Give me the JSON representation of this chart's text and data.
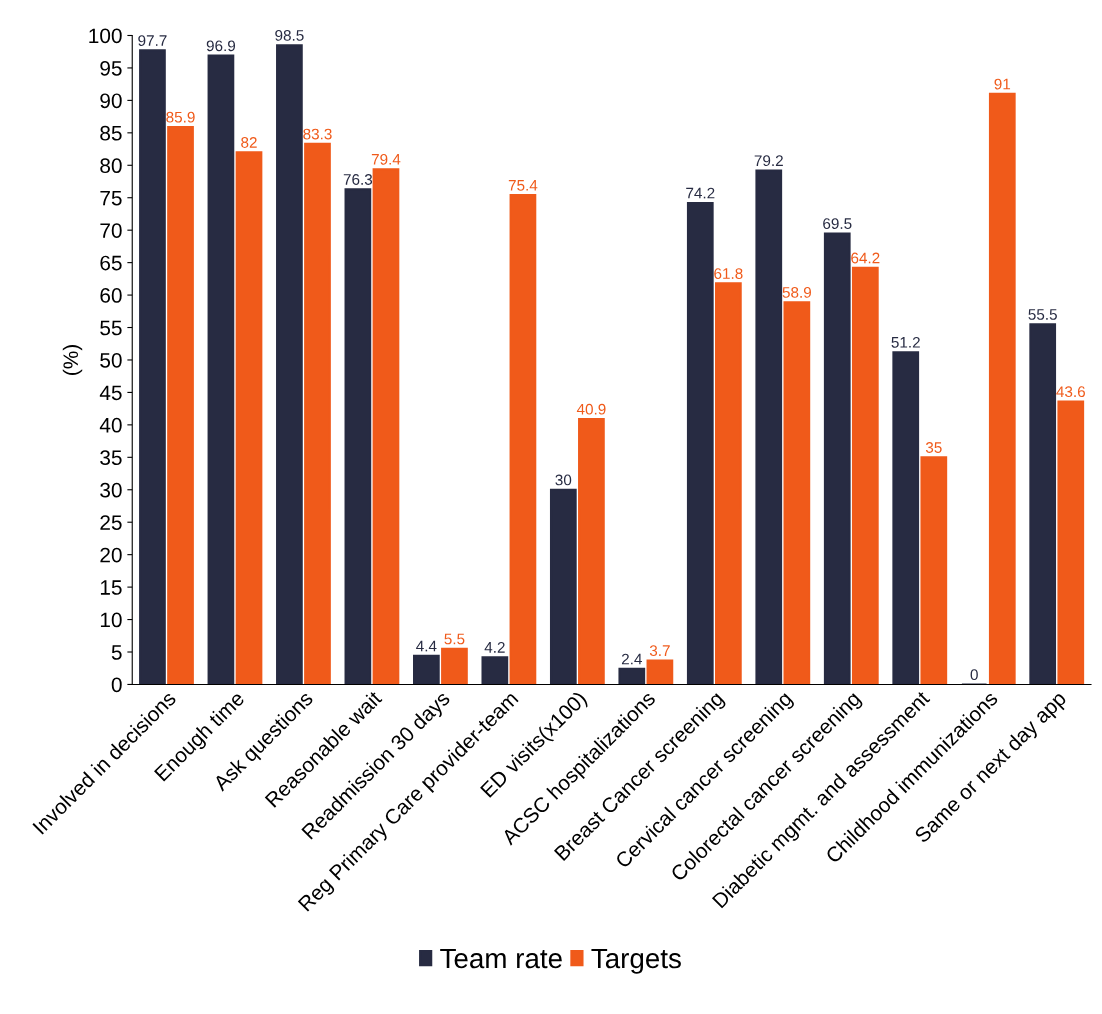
{
  "chart_data": {
    "type": "bar",
    "ylabel": "(%)",
    "categories": [
      "Involved in decisions",
      "Enough time",
      "Ask questions",
      "Reasonable wait",
      "Readmission 30 days",
      "Reg Primary Care provider-team",
      "ED visits(x100)",
      "ACSC hospitalizations",
      "Breast Cancer screening",
      "Cervical cancer screening",
      "Colorectal cancer screening",
      "Diabetic mgmt. and assessment",
      "Childhood immunizations",
      "Same or next day app"
    ],
    "series": [
      {
        "name": "Team rate",
        "color": "#272b42",
        "values": [
          97.7,
          96.9,
          98.5,
          76.3,
          4.4,
          4.2,
          30,
          2.4,
          74.2,
          79.2,
          69.5,
          51.2,
          0,
          55.5
        ]
      },
      {
        "name": "Targets",
        "color": "#f05a1a",
        "values": [
          85.9,
          82,
          83.3,
          79.4,
          5.5,
          75.4,
          40.9,
          3.7,
          61.8,
          58.9,
          64.2,
          35,
          91,
          43.6
        ]
      }
    ],
    "ylim": [
      0,
      100
    ],
    "yticks": [
      0,
      5,
      10,
      15,
      20,
      25,
      30,
      35,
      40,
      45,
      50,
      55,
      60,
      65,
      70,
      75,
      80,
      85,
      90,
      95,
      100
    ],
    "data_labels": true,
    "legend": "bottom",
    "grid": false
  }
}
